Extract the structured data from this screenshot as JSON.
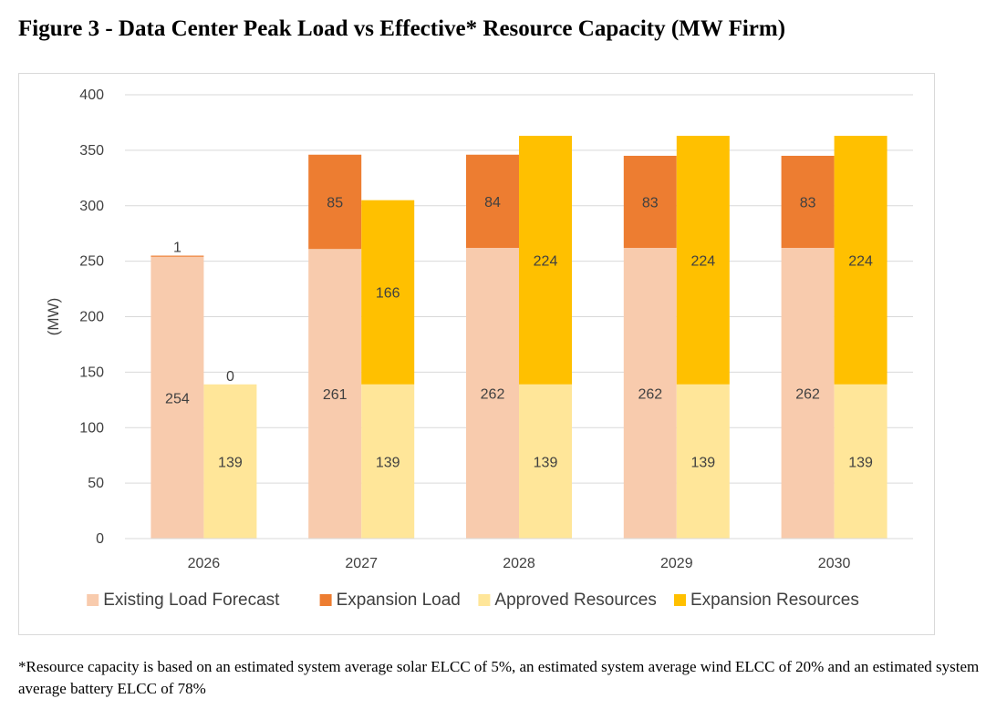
{
  "title": "Figure 3 - Data Center Peak Load vs Effective* Resource Capacity (MW Firm)",
  "footnote": "*Resource capacity is based on an estimated system average solar ELCC of 5%, an estimated system average wind ELCC of 20% and an estimated system average battery ELCC of 78%",
  "colors": {
    "existing_load": "#f8cbad",
    "expansion_load": "#ed7d31",
    "approved_resources": "#ffe699",
    "expansion_resources": "#ffc000",
    "grid": "#d9d9d9",
    "text": "#404040"
  },
  "chart_data": {
    "type": "bar",
    "stacked": true,
    "grouped": true,
    "categories": [
      "2026",
      "2027",
      "2028",
      "2029",
      "2030"
    ],
    "ylabel": "(MW)",
    "xlabel": "",
    "ylim": [
      0,
      400
    ],
    "yticks": [
      0,
      50,
      100,
      150,
      200,
      250,
      300,
      350,
      400
    ],
    "grid": true,
    "legend_position": "bottom",
    "groups": [
      {
        "name": "Load",
        "series": [
          {
            "name": "Existing Load Forecast",
            "color_key": "existing_load",
            "values": [
              254,
              261,
              262,
              262,
              262
            ]
          },
          {
            "name": "Expansion Load",
            "color_key": "expansion_load",
            "values": [
              1,
              85,
              84,
              83,
              83
            ]
          }
        ]
      },
      {
        "name": "Resources",
        "series": [
          {
            "name": "Approved Resources",
            "color_key": "approved_resources",
            "values": [
              139,
              139,
              139,
              139,
              139
            ]
          },
          {
            "name": "Expansion Resources",
            "color_key": "expansion_resources",
            "values": [
              0,
              166,
              224,
              224,
              224
            ]
          }
        ]
      }
    ],
    "legend": [
      "Existing Load Forecast",
      "Expansion Load",
      "Approved Resources",
      "Expansion Resources"
    ]
  }
}
